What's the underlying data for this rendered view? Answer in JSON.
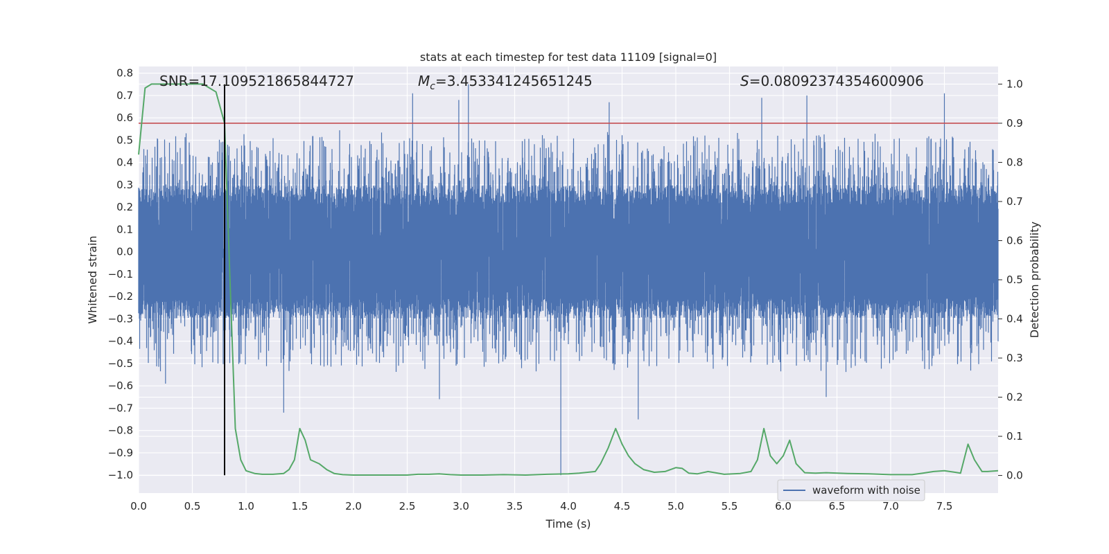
{
  "chart_data": {
    "type": "line",
    "title": "stats at each timestep for test data 11109 [signal=0]",
    "xlabel": "Time (s)",
    "ylabel": "Whitened strain",
    "y2label": "Detection probability",
    "xlim": [
      0.0,
      8.0
    ],
    "ylim": [
      -1.08,
      0.83
    ],
    "y2lim": [
      -0.045,
      1.045
    ],
    "xticks": [
      "0.0",
      "0.5",
      "1.0",
      "1.5",
      "2.0",
      "2.5",
      "3.0",
      "3.5",
      "4.0",
      "4.5",
      "5.0",
      "5.5",
      "6.0",
      "6.5",
      "7.0",
      "7.5"
    ],
    "yticks": [
      "0.8",
      "0.7",
      "0.6",
      "0.5",
      "0.4",
      "0.3",
      "0.2",
      "0.1",
      "0.0",
      "−0.1",
      "−0.2",
      "−0.3",
      "−0.4",
      "−0.5",
      "−0.6",
      "−0.7",
      "−0.8",
      "−0.9",
      "−1.0"
    ],
    "y2ticks": [
      "1.0",
      "0.9",
      "0.8",
      "0.7",
      "0.6",
      "0.5",
      "0.4",
      "0.3",
      "0.2",
      "0.1",
      "0.0"
    ],
    "grid": true,
    "legend_position": "lower-right",
    "annotations": {
      "snr": "SNR=17.109521865844727",
      "mc_symbol": "M",
      "mc_sub": "c",
      "mc_value": "=3.453341245651245",
      "s_symbol": "S",
      "s_value": "=0.08092374354600906"
    },
    "threshold": {
      "axis": "y2",
      "value": 0.9,
      "color": "#c44e52"
    },
    "vline": {
      "x": 0.8,
      "ymin": -1.0,
      "ymax": 0.75,
      "color": "#000000"
    },
    "series": [
      {
        "name": "waveform with noise",
        "axis": "y",
        "color": "#4c72b0",
        "render": "dense_noise",
        "x_range": [
          0.0,
          8.0
        ],
        "band": [
          -0.3,
          0.3
        ],
        "envelope": [
          -0.5,
          0.5
        ],
        "peaks": [
          {
            "x": 2.55,
            "y": 0.71
          },
          {
            "x": 3.07,
            "y": 0.75
          },
          {
            "x": 2.98,
            "y": 0.68
          },
          {
            "x": 4.38,
            "y": 0.67
          },
          {
            "x": 5.8,
            "y": 0.69
          },
          {
            "x": 6.22,
            "y": 0.7
          },
          {
            "x": 7.5,
            "y": 0.71
          },
          {
            "x": 3.93,
            "y": -1.0
          },
          {
            "x": 4.65,
            "y": -0.75
          },
          {
            "x": 1.35,
            "y": -0.72
          },
          {
            "x": 2.8,
            "y": -0.66
          },
          {
            "x": 6.4,
            "y": -0.65
          },
          {
            "x": 0.25,
            "y": -0.59
          }
        ]
      },
      {
        "name": "",
        "axis": "y2",
        "color": "#55a868",
        "x": [
          0.0,
          0.06,
          0.12,
          0.2,
          0.3,
          0.4,
          0.5,
          0.55,
          0.6,
          0.66,
          0.72,
          0.8,
          0.85,
          0.9,
          0.95,
          1.0,
          1.08,
          1.15,
          1.25,
          1.35,
          1.4,
          1.45,
          1.5,
          1.55,
          1.6,
          1.68,
          1.75,
          1.82,
          1.9,
          2.0,
          2.2,
          2.5,
          2.6,
          2.7,
          2.8,
          2.9,
          3.0,
          3.2,
          3.4,
          3.6,
          3.8,
          4.0,
          4.1,
          4.25,
          4.3,
          4.37,
          4.44,
          4.5,
          4.56,
          4.62,
          4.7,
          4.8,
          4.9,
          5.0,
          5.06,
          5.12,
          5.2,
          5.3,
          5.45,
          5.6,
          5.7,
          5.76,
          5.82,
          5.88,
          5.94,
          6.0,
          6.06,
          6.12,
          6.2,
          6.3,
          6.4,
          6.6,
          6.8,
          7.0,
          7.2,
          7.3,
          7.4,
          7.5,
          7.6,
          7.65,
          7.72,
          7.78,
          7.85,
          7.9,
          8.0
        ],
        "values": [
          0.82,
          0.99,
          1.0,
          1.0,
          1.0,
          1.0,
          1.0,
          1.0,
          1.0,
          0.99,
          0.98,
          0.9,
          0.5,
          0.12,
          0.04,
          0.012,
          0.005,
          0.003,
          0.003,
          0.005,
          0.015,
          0.04,
          0.12,
          0.09,
          0.04,
          0.03,
          0.015,
          0.005,
          0.002,
          0.001,
          0.001,
          0.001,
          0.003,
          0.003,
          0.004,
          0.002,
          0.001,
          0.001,
          0.002,
          0.001,
          0.003,
          0.004,
          0.006,
          0.01,
          0.03,
          0.07,
          0.12,
          0.08,
          0.05,
          0.03,
          0.015,
          0.008,
          0.01,
          0.02,
          0.018,
          0.006,
          0.004,
          0.01,
          0.003,
          0.005,
          0.01,
          0.04,
          0.12,
          0.05,
          0.03,
          0.05,
          0.09,
          0.03,
          0.007,
          0.006,
          0.007,
          0.005,
          0.004,
          0.002,
          0.002,
          0.006,
          0.01,
          0.012,
          0.008,
          0.006,
          0.08,
          0.04,
          0.01,
          0.01,
          0.012
        ]
      }
    ]
  }
}
